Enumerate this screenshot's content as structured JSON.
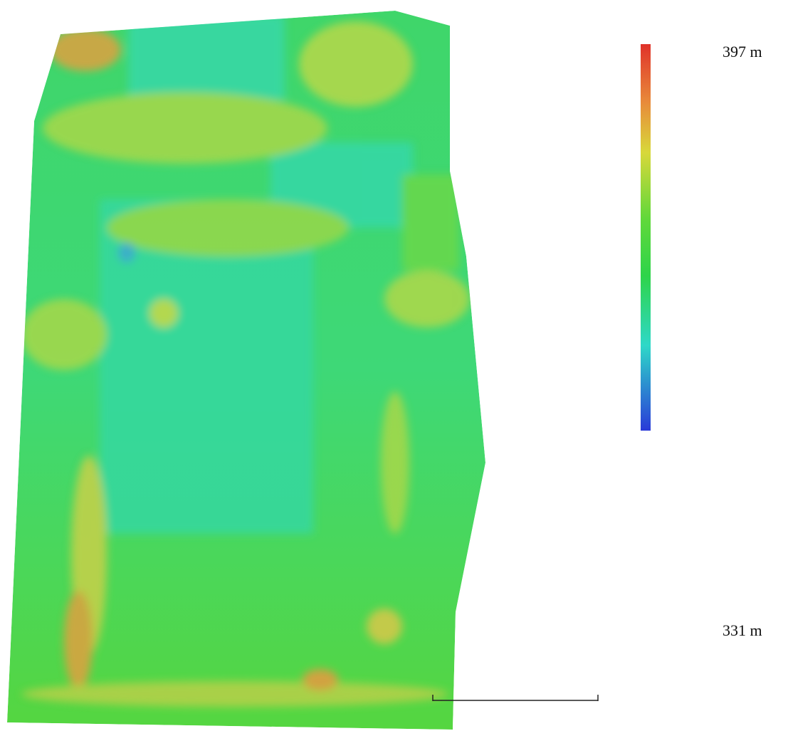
{
  "legend": {
    "max_label": "397 m",
    "min_label": "331 m"
  }
}
